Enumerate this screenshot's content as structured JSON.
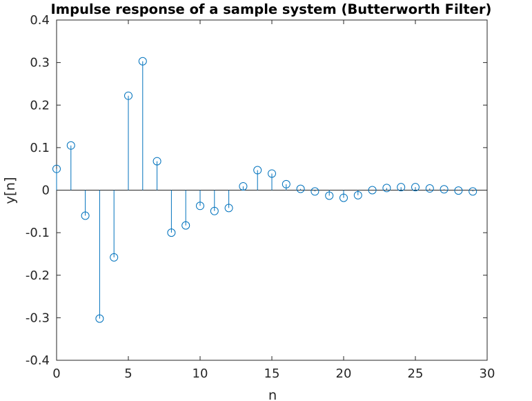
{
  "chart_data": {
    "type": "stem",
    "title": "Impulse response of a sample system (Butterworth Filter)",
    "xlabel": "n",
    "ylabel": "y[n]",
    "xlim": [
      0,
      30
    ],
    "ylim": [
      -0.4,
      0.4
    ],
    "xticks": [
      0,
      5,
      10,
      15,
      20,
      25,
      30
    ],
    "xtick_labels": [
      "0",
      "5",
      "10",
      "15",
      "20",
      "25",
      "30"
    ],
    "yticks": [
      -0.4,
      -0.3,
      -0.2,
      -0.1,
      0,
      0.1,
      0.2,
      0.3,
      0.4
    ],
    "ytick_labels": [
      "-0.4",
      "-0.3",
      "-0.2",
      "-0.1",
      "0",
      "0.1",
      "0.2",
      "0.3",
      "0.4"
    ],
    "grid": false,
    "legend": null,
    "baseline": 0,
    "marker": "circle-open",
    "color": "#0072BD",
    "series": [
      {
        "x": [
          0,
          1,
          2,
          3,
          4,
          5,
          6,
          7,
          8,
          9,
          10,
          11,
          12,
          13,
          14,
          15,
          16,
          17,
          18,
          19,
          20,
          21,
          22,
          23,
          24,
          25,
          26,
          27,
          28,
          29
        ],
        "values": [
          0.05,
          0.105,
          -0.06,
          -0.302,
          -0.158,
          0.222,
          0.303,
          0.068,
          -0.1,
          -0.083,
          -0.037,
          -0.049,
          -0.042,
          0.009,
          0.047,
          0.039,
          0.014,
          0.003,
          -0.003,
          -0.013,
          -0.018,
          -0.012,
          0.0,
          0.005,
          0.007,
          0.007,
          0.004,
          0.002,
          -0.001,
          -0.003
        ]
      }
    ]
  }
}
